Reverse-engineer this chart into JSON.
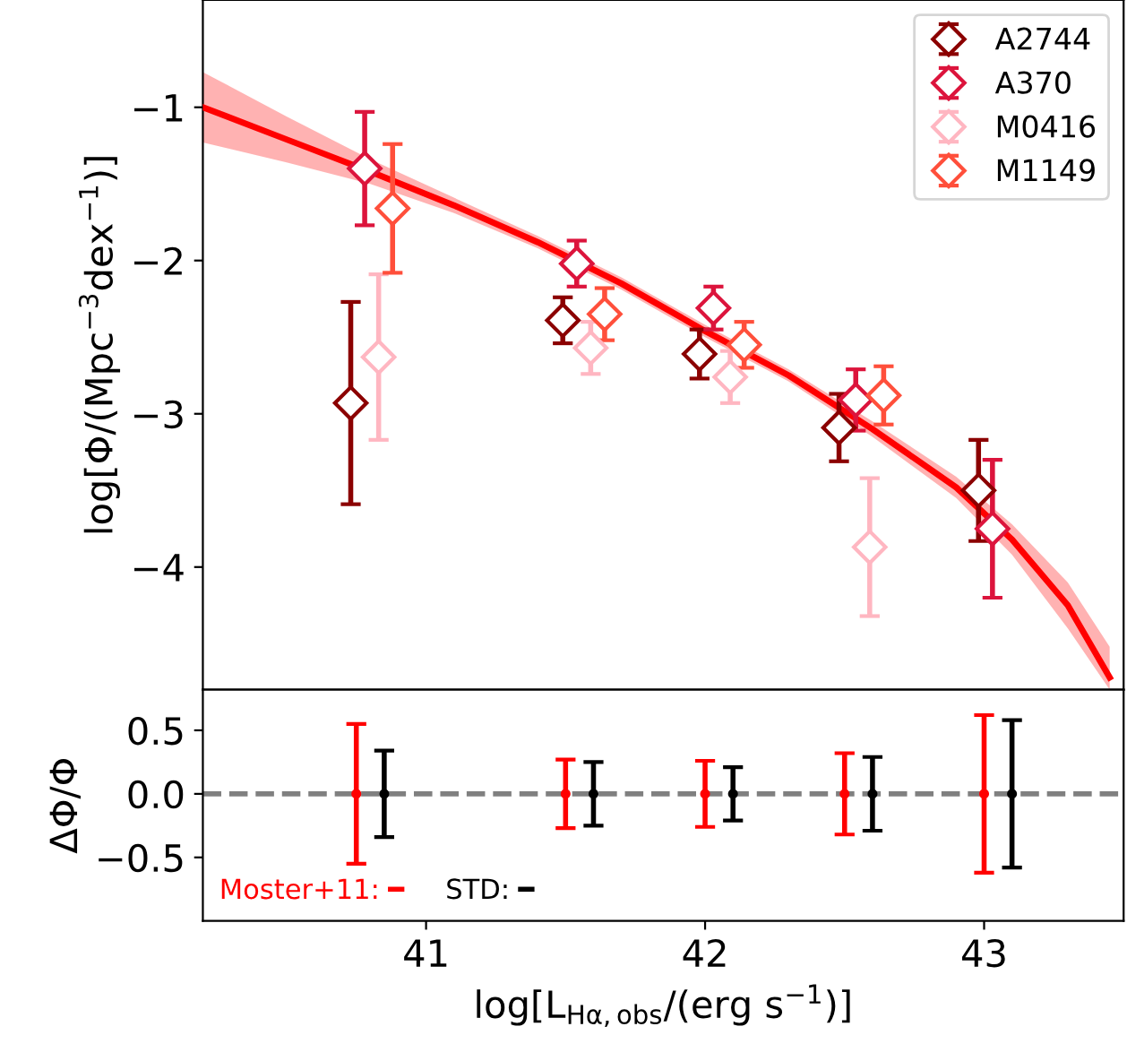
{
  "chart_data": [
    {
      "type": "scatter",
      "ylabel": "log[Φ/(Mpc$^{−3}$dex$^{−1}$)]",
      "xlim": [
        40.2,
        43.5
      ],
      "xticks": [
        41,
        42,
        43
      ],
      "ylim": [
        -4.8,
        -0.3
      ],
      "yticks": [
        {
          "value": -4,
          "label": "−4"
        },
        {
          "value": -3,
          "label": "−3"
        },
        {
          "value": -2,
          "label": "−2"
        },
        {
          "value": -1,
          "label": "−1"
        }
      ],
      "tick_labels": "y",
      "marker": "diamond",
      "legend": "top right",
      "grid": false,
      "series": [
        {
          "name": "A2744",
          "color": "#8b0000",
          "x": [
            40.73,
            41.49,
            41.98,
            42.48,
            42.98
          ],
          "values": [
            -2.93,
            -2.39,
            -2.61,
            -3.09,
            -3.5
          ],
          "errors": [
            0.66,
            0.15,
            0.16,
            0.22,
            0.33
          ]
        },
        {
          "name": "A370",
          "color": "#dc143c",
          "x": [
            40.78,
            41.54,
            42.03,
            42.54,
            43.03
          ],
          "values": [
            -1.4,
            -2.02,
            -2.31,
            -2.91,
            -3.75
          ],
          "errors": [
            0.37,
            0.15,
            0.14,
            0.2,
            0.45
          ]
        },
        {
          "name": "M0416",
          "color": "#ffb6c1",
          "x": [
            40.83,
            41.59,
            42.09,
            42.59
          ],
          "values": [
            -2.63,
            -2.57,
            -2.76,
            -3.87
          ],
          "errors": [
            0.54,
            0.17,
            0.17,
            0.45
          ]
        },
        {
          "name": "M1149",
          "color": "#ff4f3b",
          "x": [
            40.88,
            41.64,
            42.14,
            42.64
          ],
          "values": [
            -1.66,
            -2.35,
            -2.55,
            -2.88
          ],
          "errors": [
            0.42,
            0.17,
            0.15,
            0.19
          ]
        },
        {
          "type": "line",
          "marker": "none",
          "color": "#ff0000",
          "x": [
            40.2,
            40.5,
            40.8,
            41.1,
            41.4,
            41.7,
            42.0,
            42.3,
            42.6,
            42.9,
            43.1,
            43.3,
            43.45
          ],
          "values": [
            -1.0,
            -1.21,
            -1.42,
            -1.64,
            -1.88,
            -2.15,
            -2.46,
            -2.75,
            -3.1,
            -3.48,
            -3.82,
            -4.25,
            -4.72
          ],
          "lower": [
            -1.23,
            -1.36,
            -1.5,
            -1.69,
            -1.92,
            -2.19,
            -2.5,
            -2.79,
            -3.15,
            -3.55,
            -3.92,
            -4.4,
            -4.8
          ],
          "upper": [
            -0.77,
            -1.06,
            -1.34,
            -1.59,
            -1.84,
            -2.11,
            -2.42,
            -2.71,
            -3.05,
            -3.41,
            -3.72,
            -4.1,
            -4.52
          ]
        }
      ]
    },
    {
      "type": "scatter",
      "xlabel": "log[L$_{Hα,obs}$/(erg s$^{−1}$)]",
      "ylabel": "ΔΦ/Φ",
      "xlim": [
        40.2,
        43.5
      ],
      "xticks": [
        41,
        42,
        43
      ],
      "ylim": [
        -1.0,
        0.82
      ],
      "yticks": [
        {
          "value": -0.5,
          "label": "−0.5"
        },
        {
          "value": 0.0,
          "label": "0.0"
        },
        {
          "value": 0.5,
          "label": "0.5"
        }
      ],
      "marker": "circle",
      "legend": "bottom left",
      "grid": false,
      "ref_lines": [
        {
          "axis": "y",
          "value": 0,
          "color": "#808080",
          "line_style": "dashed"
        }
      ],
      "series": [
        {
          "name": "Moster+11:",
          "color": "#ff0000",
          "x": [
            40.75,
            41.5,
            42.0,
            42.5,
            43.0
          ],
          "values": [
            0,
            0,
            0,
            0,
            0
          ],
          "errors": [
            0.55,
            0.27,
            0.26,
            0.32,
            0.62
          ]
        },
        {
          "name": "STD:",
          "color": "#000000",
          "x": [
            40.85,
            41.6,
            42.1,
            42.6,
            43.1
          ],
          "values": [
            0,
            0,
            0,
            0,
            0
          ],
          "errors": [
            0.34,
            0.25,
            0.21,
            0.29,
            0.58
          ]
        }
      ]
    }
  ]
}
